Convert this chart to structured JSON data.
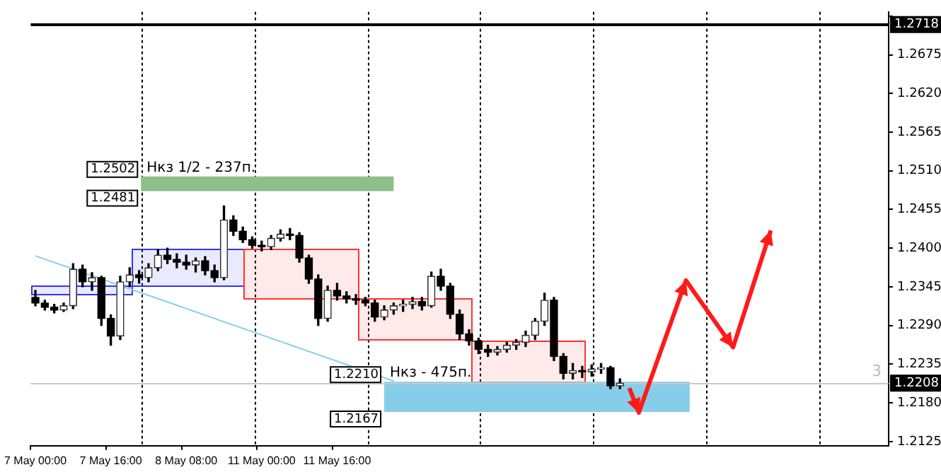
{
  "chart_data": {
    "type": "candlestick",
    "categories": [
      "7 May 00:00",
      null,
      null,
      null,
      null,
      null,
      null,
      null,
      "7 May 16:00",
      null,
      null,
      null,
      null,
      null,
      null,
      null,
      "8 May 08:00",
      null,
      null,
      null,
      null,
      null,
      null,
      null,
      "11 May 00:00",
      null,
      null,
      null,
      null,
      null,
      null,
      null,
      "11 May 16:00",
      null,
      null,
      null,
      null,
      null,
      null,
      null,
      null,
      null,
      null,
      null,
      null,
      null,
      null,
      null,
      null,
      null,
      null,
      null,
      null,
      null,
      null,
      null,
      null,
      null,
      null,
      null,
      null,
      null,
      null,
      null,
      null,
      null,
      null,
      null,
      null,
      null,
      null,
      null,
      null,
      null,
      null,
      null,
      null,
      null,
      null,
      null,
      null,
      null,
      null,
      null,
      null,
      null,
      null,
      null,
      null,
      null,
      null
    ],
    "ohlc": [
      [
        1.233,
        1.234,
        1.2318,
        1.2322
      ],
      [
        1.2322,
        1.2326,
        1.2312,
        1.2316
      ],
      [
        1.2316,
        1.232,
        1.2308,
        1.2312
      ],
      [
        1.2312,
        1.2322,
        1.231,
        1.2318
      ],
      [
        1.2318,
        1.2378,
        1.2314,
        1.237
      ],
      [
        1.237,
        1.2376,
        1.2345,
        1.2352
      ],
      [
        1.2352,
        1.2365,
        1.234,
        1.2358
      ],
      [
        1.2358,
        1.236,
        1.229,
        1.23
      ],
      [
        1.23,
        1.2305,
        1.2262,
        1.2275
      ],
      [
        1.2275,
        1.236,
        1.227,
        1.2352
      ],
      [
        1.2352,
        1.2372,
        1.2345,
        1.2362
      ],
      [
        1.2362,
        1.2368,
        1.235,
        1.2358
      ],
      [
        1.2358,
        1.2378,
        1.2352,
        1.2372
      ],
      [
        1.2372,
        1.2398,
        1.2368,
        1.239
      ],
      [
        1.239,
        1.24,
        1.2378,
        1.2384
      ],
      [
        1.2384,
        1.2392,
        1.2372,
        1.238
      ],
      [
        1.238,
        1.239,
        1.237,
        1.2376
      ],
      [
        1.2376,
        1.2386,
        1.2366,
        1.2382
      ],
      [
        1.2382,
        1.2388,
        1.2362,
        1.2368
      ],
      [
        1.2368,
        1.2376,
        1.2352,
        1.2358
      ],
      [
        1.2358,
        1.246,
        1.2355,
        1.244
      ],
      [
        1.244,
        1.2446,
        1.2418,
        1.2424
      ],
      [
        1.2424,
        1.243,
        1.2408,
        1.2412
      ],
      [
        1.2412,
        1.2416,
        1.24,
        1.2404
      ],
      [
        1.2404,
        1.241,
        1.2396,
        1.2402
      ],
      [
        1.2402,
        1.2418,
        1.2398,
        1.2414
      ],
      [
        1.2414,
        1.2426,
        1.241,
        1.242
      ],
      [
        1.242,
        1.2428,
        1.2412,
        1.2418
      ],
      [
        1.2418,
        1.2422,
        1.238,
        1.2386
      ],
      [
        1.2386,
        1.239,
        1.235,
        1.2356
      ],
      [
        1.2356,
        1.2362,
        1.229,
        1.23
      ],
      [
        1.23,
        1.2346,
        1.2296,
        1.234
      ],
      [
        1.234,
        1.235,
        1.2326,
        1.2332
      ],
      [
        1.2332,
        1.2338,
        1.2322,
        1.2328
      ],
      [
        1.2328,
        1.2334,
        1.232,
        1.2326
      ],
      [
        1.2326,
        1.233,
        1.2318,
        1.2322
      ],
      [
        1.2322,
        1.2326,
        1.2296,
        1.2302
      ],
      [
        1.2302,
        1.2318,
        1.2298,
        1.2312
      ],
      [
        1.2312,
        1.2322,
        1.2306,
        1.2318
      ],
      [
        1.2318,
        1.2326,
        1.231,
        1.232
      ],
      [
        1.232,
        1.233,
        1.2314,
        1.2324
      ],
      [
        1.2324,
        1.233,
        1.2312,
        1.2318
      ],
      [
        1.2318,
        1.2366,
        1.2316,
        1.236
      ],
      [
        1.236,
        1.237,
        1.234,
        1.2346
      ],
      [
        1.2346,
        1.235,
        1.23,
        1.2306
      ],
      [
        1.2306,
        1.2312,
        1.227,
        1.2278
      ],
      [
        1.2278,
        1.2284,
        1.2262,
        1.2268
      ],
      [
        1.2268,
        1.2272,
        1.225,
        1.2256
      ],
      [
        1.2256,
        1.2262,
        1.2246,
        1.2252
      ],
      [
        1.2252,
        1.226,
        1.2248,
        1.2256
      ],
      [
        1.2256,
        1.2266,
        1.2252,
        1.2262
      ],
      [
        1.2262,
        1.227,
        1.2256,
        1.2266
      ],
      [
        1.2266,
        1.2282,
        1.226,
        1.2276
      ],
      [
        1.2276,
        1.23,
        1.227,
        1.2296
      ],
      [
        1.2296,
        1.2336,
        1.229,
        1.2326
      ],
      [
        1.2326,
        1.233,
        1.224,
        1.2246
      ],
      [
        1.2246,
        1.225,
        1.2214,
        1.2222
      ],
      [
        1.2222,
        1.2236,
        1.2214,
        1.2226
      ],
      [
        1.2226,
        1.2232,
        1.2216,
        1.2224
      ],
      [
        1.2224,
        1.2234,
        1.2218,
        1.2228
      ],
      [
        1.2228,
        1.2236,
        1.2222,
        1.223
      ],
      [
        1.223,
        1.2232,
        1.22,
        1.2204
      ],
      [
        1.2204,
        1.2214,
        1.22,
        1.2208
      ],
      null,
      null,
      null,
      null,
      null,
      null,
      null,
      null,
      null,
      null,
      null,
      null,
      null,
      null,
      null,
      null,
      null,
      null,
      null,
      null,
      null,
      null,
      null,
      null,
      null,
      null,
      null,
      null
    ],
    "series": [
      {
        "type": "line",
        "color": "#87ceeb",
        "values": [
          1.2389,
          null,
          null,
          null,
          null,
          null,
          null,
          null,
          null,
          null,
          null,
          null,
          null,
          null,
          null,
          null,
          null,
          null,
          null,
          null,
          null,
          null,
          null,
          null,
          null,
          null,
          null,
          null,
          null,
          null,
          null,
          null,
          null,
          null,
          null,
          null,
          null,
          null,
          1.2211,
          null,
          null,
          null,
          null,
          null,
          null,
          null,
          null,
          null,
          null,
          null,
          null,
          null,
          null,
          null,
          null,
          null,
          null,
          null,
          null,
          null,
          null,
          null,
          null,
          null,
          null,
          null,
          null,
          null,
          null,
          null,
          null,
          null,
          null,
          null,
          null,
          null,
          null,
          null,
          null,
          null,
          null,
          null,
          null,
          null,
          null,
          null,
          null,
          null,
          null,
          null,
          null
        ]
      },
      {
        "type": "line",
        "color": "#ff1a1a",
        "values": [
          null,
          null,
          null,
          null,
          null,
          null,
          null,
          null,
          null,
          null,
          null,
          null,
          null,
          null,
          null,
          null,
          null,
          null,
          null,
          null,
          null,
          null,
          null,
          null,
          null,
          null,
          null,
          null,
          null,
          null,
          null,
          null,
          null,
          null,
          null,
          null,
          null,
          null,
          null,
          null,
          null,
          null,
          null,
          null,
          null,
          null,
          null,
          null,
          null,
          null,
          null,
          null,
          null,
          null,
          null,
          null,
          null,
          null,
          null,
          null,
          null,
          null,
          null,
          1.2201,
          1.2166,
          null,
          null,
          null,
          null,
          1.2354,
          null,
          null,
          null,
          null,
          1.2259,
          null,
          null,
          null,
          1.2425,
          null,
          null,
          null,
          null,
          null,
          null,
          null,
          null,
          null,
          null,
          null,
          null
        ]
      }
    ],
    "ylim": [
      1.2119,
      1.2736
    ],
    "yticks": [
      1.2125,
      {
        "value": 1.218,
        "label": "1.2180"
      },
      1.2235,
      {
        "value": 1.229,
        "label": "1.2290"
      },
      1.2345,
      {
        "value": 1.24,
        "label": "1.2400"
      },
      1.2455,
      {
        "value": 1.251,
        "label": "1.2510"
      },
      1.2565,
      {
        "value": 1.262,
        "label": "1.2620"
      },
      1.2675,
      {
        "value": 1.273,
        "label": null
      }
    ],
    "bands": [
      {
        "axis": "y",
        "from": 1.2333,
        "to": 1.2346,
        "color": "#3333ff"
      },
      {
        "axis": "y",
        "from": 1.2346,
        "to": 1.2399,
        "color": "#3333ff"
      },
      {
        "axis": "y",
        "from": 1.2328,
        "to": 1.2399,
        "color": "#ff3333"
      },
      {
        "axis": "y",
        "from": 1.2269,
        "to": 1.2328,
        "color": "#ff3333"
      },
      {
        "axis": "y",
        "from": 1.2211,
        "to": 1.2269,
        "color": "#ff3333"
      },
      {
        "axis": "y",
        "from": 1.2481,
        "to": 1.2502,
        "label": "Нкз 1/2 - 237п.",
        "color": "#8fbf88"
      },
      {
        "axis": "y",
        "from": 1.2167,
        "to": 1.221,
        "label": "Нкз - 475п.",
        "color": "#87cdea"
      }
    ],
    "ref_lines": [
      {
        "axis": "y",
        "value": 1.2718,
        "label": "1.2718",
        "color": "#000000"
      },
      {
        "axis": "y",
        "value": 1.2208,
        "label": "1.2208",
        "color": "#c8c8c8"
      }
    ],
    "annotations": [
      "3",
      "1.2502",
      "1.2481",
      "1.2210",
      "1.2167"
    ],
    "grid": false,
    "legend": false
  }
}
